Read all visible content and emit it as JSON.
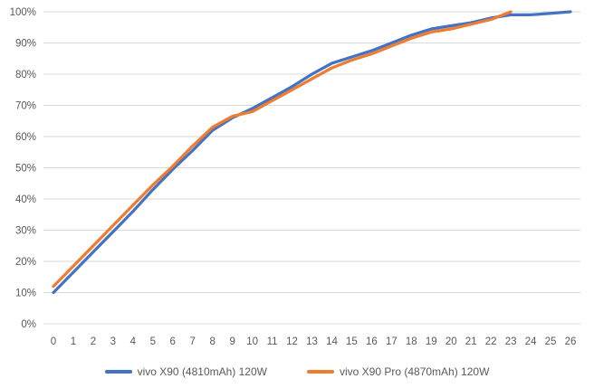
{
  "chart_data": {
    "type": "line",
    "x_tick_labels": [
      "0",
      "1",
      "2",
      "3",
      "4",
      "5",
      "6",
      "7",
      "8",
      "9",
      "10",
      "11",
      "12",
      "13",
      "14",
      "15",
      "16",
      "17",
      "18",
      "19",
      "20",
      "21",
      "22",
      "23",
      "24",
      "25",
      "26"
    ],
    "y_tick_labels": [
      "0%",
      "10%",
      "20%",
      "30%",
      "40%",
      "50%",
      "60%",
      "70%",
      "80%",
      "90%",
      "100%"
    ],
    "ylim": [
      0,
      100
    ],
    "grid": "horizontal",
    "grid_color": "#D9D9D9",
    "label_color": "#595959",
    "background": "#FFFFFF",
    "legend_position": "bottom",
    "series": [
      {
        "name": "vivo X90 (4810mAh) 120W",
        "color": "#4472C4",
        "values": [
          10,
          16.5,
          23,
          29.5,
          36,
          43,
          49.5,
          55.5,
          62,
          66,
          69,
          72.5,
          76,
          80,
          83.5,
          85.5,
          87.5,
          90,
          92.5,
          94.5,
          95.5,
          96.5,
          98,
          99,
          99,
          99.5,
          100
        ]
      },
      {
        "name": "vivo X90 Pro (4870mAh) 120W",
        "color": "#ED7D31",
        "values": [
          12,
          18.5,
          25,
          31.5,
          38,
          44.5,
          50.5,
          57,
          63,
          66.5,
          68,
          71.5,
          75,
          78.5,
          82,
          84.5,
          86.5,
          89,
          91.5,
          93.5,
          94.5,
          96,
          97.5,
          100
        ]
      }
    ]
  }
}
